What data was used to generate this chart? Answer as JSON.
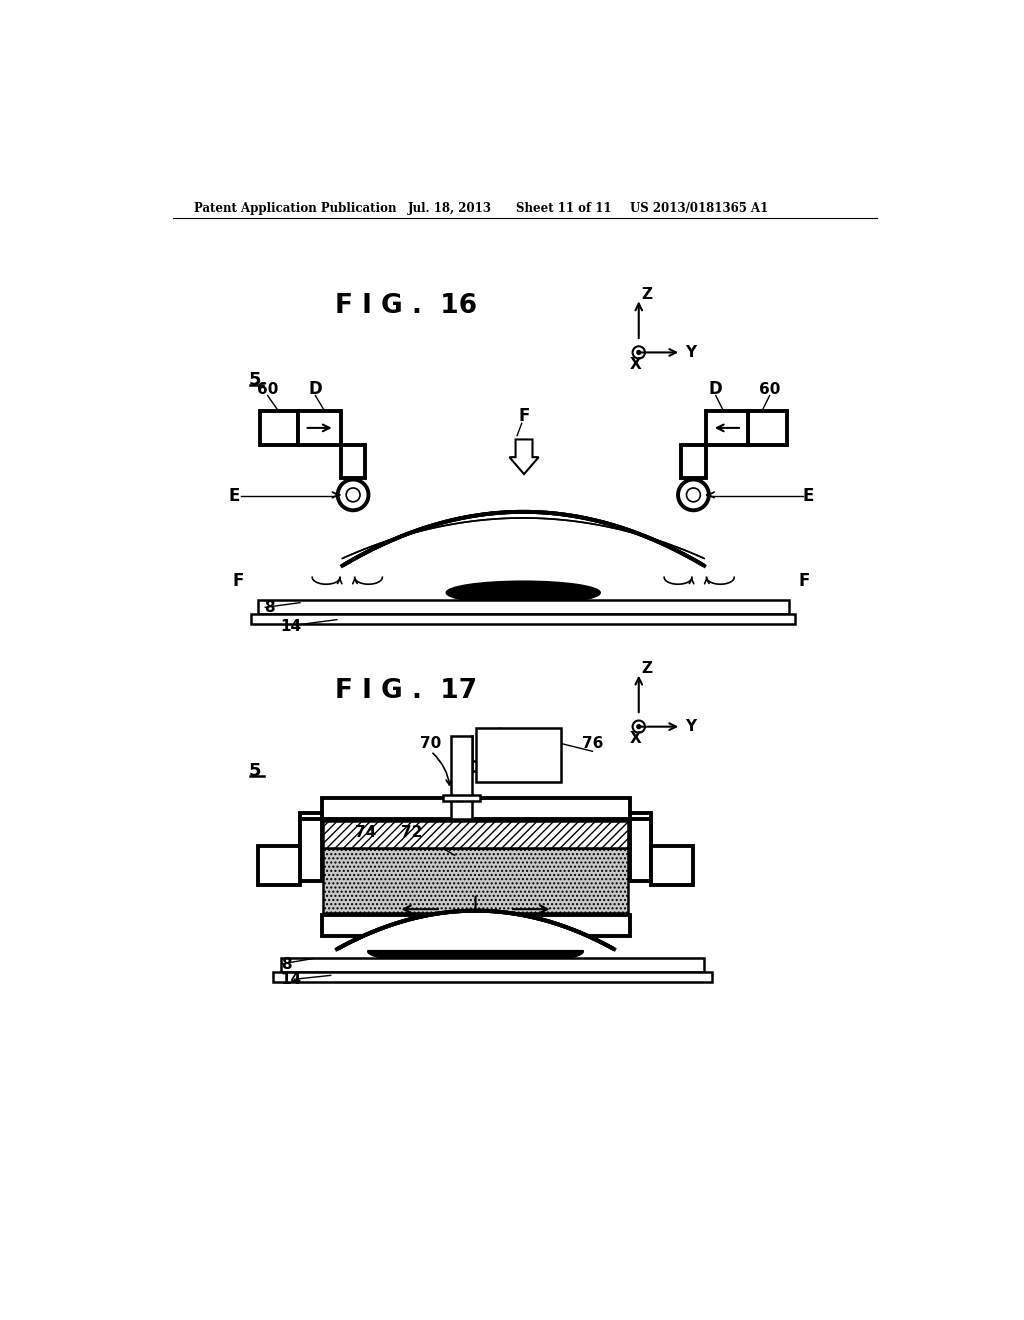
{
  "bg_color": "#ffffff",
  "header_text": "Patent Application Publication",
  "header_date": "Jul. 18, 2013",
  "header_sheet": "Sheet 11 of 11",
  "header_patent": "US 2013/0181365 A1",
  "fig16_title": "F I G .  16",
  "fig17_title": "F I G .  17"
}
